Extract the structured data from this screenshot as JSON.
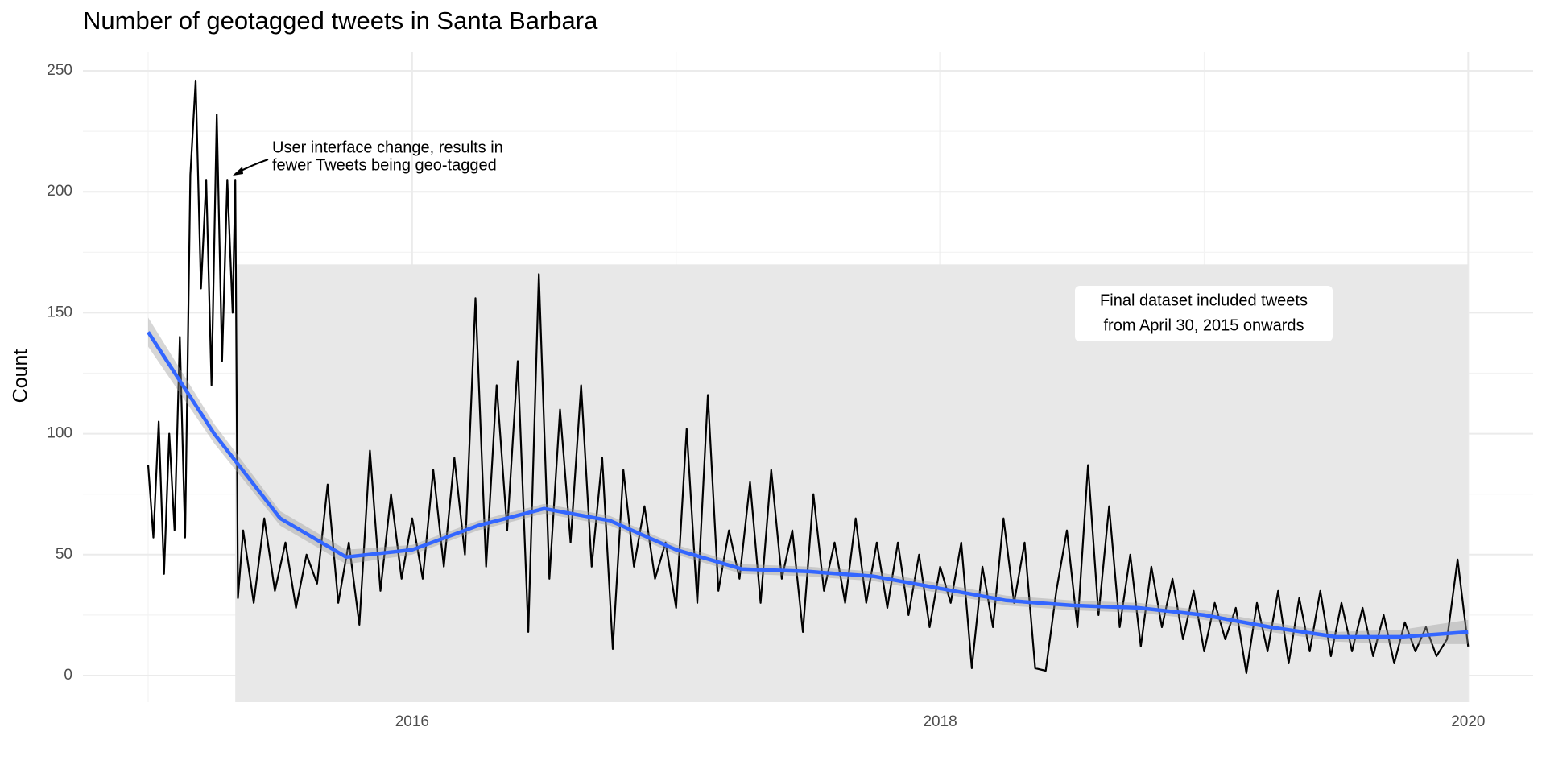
{
  "chart_data": {
    "type": "line",
    "title": "Number of geotagged tweets in Santa Barbara",
    "ylabel": "Count",
    "xlim": [
      2014.753,
      2020.246
    ],
    "ylim": [
      -11,
      258
    ],
    "xticks": [
      2016,
      2018,
      2020
    ],
    "yticks": [
      0,
      50,
      100,
      150,
      200,
      250
    ],
    "xminor": [
      2015,
      2017,
      2019
    ],
    "yminor": [
      25,
      75,
      125,
      175,
      225
    ],
    "grid": true,
    "highlight": {
      "xlim": [
        2015.33,
        2020
      ],
      "ylim": [
        -11,
        170
      ],
      "color": "#e8e8e8"
    },
    "annotations": [
      {
        "text": [
          "User interface change, results in",
          "fewer Tweets being geo-tagged"
        ]
      },
      {
        "text": [
          "Final dataset included tweets",
          "from April 30, 2015 onwards"
        ]
      }
    ],
    "series": [
      {
        "color": "#000000",
        "x": [
          2015.0,
          2015.02,
          2015.04,
          2015.06,
          2015.08,
          2015.1,
          2015.12,
          2015.14,
          2015.16,
          2015.18,
          2015.2,
          2015.22,
          2015.24,
          2015.26,
          2015.28,
          2015.3,
          2015.32,
          2015.33,
          2015.34,
          2015.36,
          2015.4,
          2015.44,
          2015.48,
          2015.52,
          2015.56,
          2015.6,
          2015.64,
          2015.68,
          2015.72,
          2015.76,
          2015.8,
          2015.84,
          2015.88,
          2015.92,
          2015.96,
          2016.0,
          2016.04,
          2016.08,
          2016.12,
          2016.16,
          2016.2,
          2016.24,
          2016.28,
          2016.32,
          2016.36,
          2016.4,
          2016.44,
          2016.48,
          2016.52,
          2016.56,
          2016.6,
          2016.64,
          2016.68,
          2016.72,
          2016.76,
          2016.8,
          2016.84,
          2016.88,
          2016.92,
          2016.96,
          2017.0,
          2017.04,
          2017.08,
          2017.12,
          2017.16,
          2017.2,
          2017.24,
          2017.28,
          2017.32,
          2017.36,
          2017.4,
          2017.44,
          2017.48,
          2017.52,
          2017.56,
          2017.6,
          2017.64,
          2017.68,
          2017.72,
          2017.76,
          2017.8,
          2017.84,
          2017.88,
          2017.92,
          2017.96,
          2018.0,
          2018.04,
          2018.08,
          2018.12,
          2018.16,
          2018.2,
          2018.24,
          2018.28,
          2018.32,
          2018.36,
          2018.4,
          2018.44,
          2018.48,
          2018.52,
          2018.56,
          2018.6,
          2018.64,
          2018.68,
          2018.72,
          2018.76,
          2018.8,
          2018.84,
          2018.88,
          2018.92,
          2018.96,
          2019.0,
          2019.04,
          2019.08,
          2019.12,
          2019.16,
          2019.2,
          2019.24,
          2019.28,
          2019.32,
          2019.36,
          2019.4,
          2019.44,
          2019.48,
          2019.52,
          2019.56,
          2019.6,
          2019.64,
          2019.68,
          2019.72,
          2019.76,
          2019.8,
          2019.84,
          2019.88,
          2019.92,
          2019.96,
          2020.0
        ],
        "values": [
          87,
          57,
          105,
          42,
          100,
          60,
          140,
          57,
          207,
          246,
          160,
          205,
          120,
          232,
          130,
          205,
          150,
          205,
          32,
          60,
          30,
          65,
          35,
          55,
          28,
          50,
          38,
          79,
          30,
          55,
          21,
          93,
          35,
          75,
          40,
          65,
          40,
          85,
          45,
          90,
          50,
          156,
          45,
          120,
          60,
          130,
          18,
          166,
          40,
          110,
          55,
          120,
          45,
          90,
          11,
          85,
          45,
          70,
          40,
          55,
          28,
          102,
          30,
          116,
          35,
          60,
          40,
          80,
          30,
          85,
          40,
          60,
          18,
          75,
          35,
          55,
          30,
          65,
          30,
          55,
          28,
          55,
          25,
          50,
          20,
          45,
          30,
          55,
          3,
          45,
          20,
          65,
          30,
          55,
          3,
          2,
          35,
          60,
          20,
          87,
          25,
          70,
          20,
          50,
          12,
          45,
          20,
          40,
          15,
          35,
          10,
          30,
          15,
          28,
          1,
          30,
          10,
          35,
          5,
          32,
          10,
          35,
          8,
          30,
          10,
          28,
          8,
          25,
          5,
          22,
          10,
          20,
          8,
          15,
          48,
          12
        ]
      },
      {
        "color": "#3366ff",
        "band_color": "#999999",
        "x": [
          2015.0,
          2015.25,
          2015.5,
          2015.75,
          2016.0,
          2016.25,
          2016.5,
          2016.75,
          2017.0,
          2017.25,
          2017.5,
          2017.75,
          2018.0,
          2018.25,
          2018.5,
          2018.75,
          2019.0,
          2019.25,
          2019.5,
          2019.75,
          2020.0
        ],
        "values": [
          142,
          100,
          65,
          49,
          52,
          62,
          69,
          64,
          52,
          44,
          43,
          41,
          36,
          31,
          29,
          28,
          25,
          20,
          16,
          16,
          18
        ],
        "lower": [
          136,
          96,
          62,
          46,
          50,
          60,
          67,
          62,
          50,
          42,
          41,
          39,
          34,
          29,
          27,
          26,
          23,
          18,
          14,
          13,
          13
        ],
        "upper": [
          148,
          104,
          68,
          52,
          54,
          64,
          71,
          66,
          54,
          46,
          45,
          43,
          38,
          33,
          31,
          30,
          27,
          22,
          18,
          19,
          23
        ]
      }
    ]
  }
}
